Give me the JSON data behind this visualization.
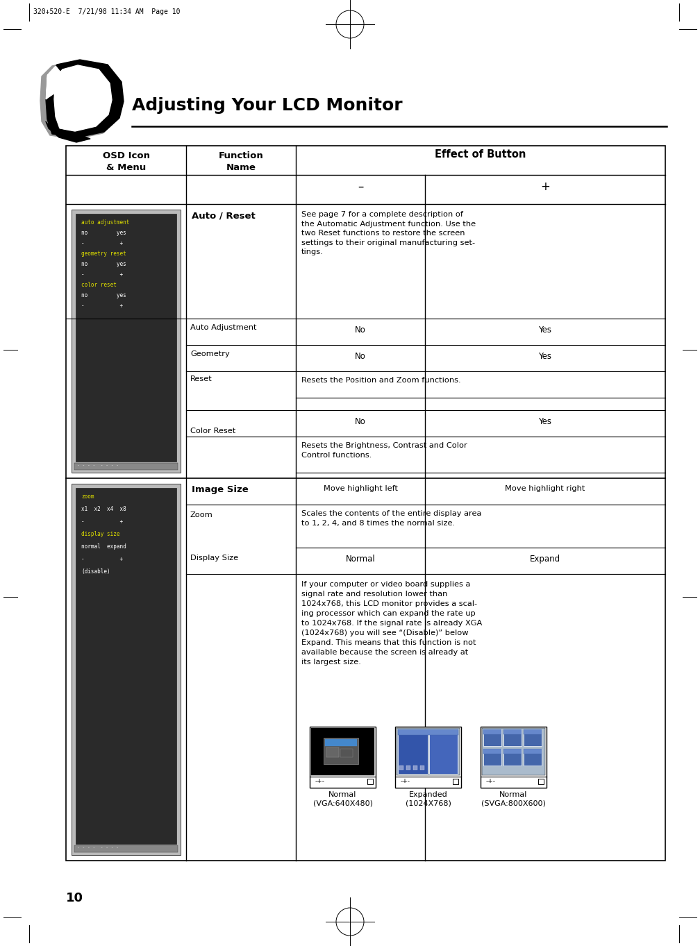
{
  "page_label": "320+520-E  7/21/98 11:34 AM  Page 10",
  "title": "Adjusting Your LCD Monitor",
  "page_number": "10",
  "bg_color": "#ffffff",
  "header_col1": "OSD Icon\n& Menu",
  "header_col2": "Function\nName",
  "header_col3_top": "Effect of Button",
  "header_col3a": "–",
  "header_col3b": "+",
  "row1_func": "Auto / Reset",
  "row1_desc": "See page 7 for a complete description of\nthe Automatic Adjustment function. Use the\ntwo Reset functions to restore the screen\nsettings to their original manufacturing set-\ntings.",
  "row1a_func": "Auto Adjustment",
  "row1a_minus": "No",
  "row1a_plus": "Yes",
  "row1b_func1": "Geometry",
  "row1b_func2": "Reset",
  "row1b_minus": "No",
  "row1b_plus": "Yes",
  "row1b_desc": "Resets the Position and Zoom functions.",
  "row1c_func": "Color Reset",
  "row1c_minus": "No",
  "row1c_plus": "Yes",
  "row1c_desc": "Resets the Brightness, Contrast and Color\nControl functions.",
  "row2_func": "Image Size",
  "row2_minus": "Move highlight left",
  "row2_plus": "Move highlight right",
  "row2b_func": "Zoom",
  "row2b_desc": "Scales the contents of the entire display area\nto 1, 2, 4, and 8 times the normal size.",
  "row2c_func": "Display Size",
  "row2c_minus": "Normal",
  "row2c_plus": "Expand",
  "row2c_desc": "If your computer or video board supplies a\nsignal rate and resolution lower than\n1024x768, this LCD monitor provides a scal-\ning processor which can expand the rate up\nto 1024x768. If the signal rate is already XGA\n(1024x768) you will see “(Disable)” below\nExpand. This means that this function is not\navailable because the screen is already at\nits largest size.",
  "img1_label1": "Normal\n(VGA:640X480)",
  "img1_label2": "Expanded\n(1024X768)",
  "img1_label3": "Normal\n(SVGA:800X600)"
}
